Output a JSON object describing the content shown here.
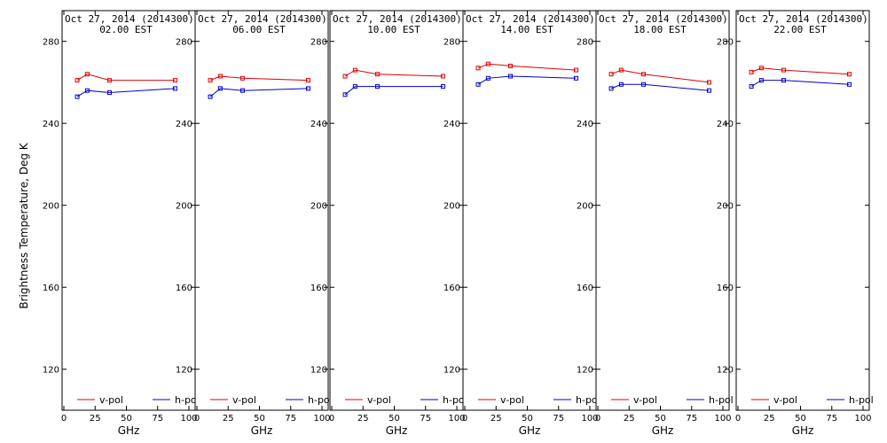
{
  "chart_data": {
    "type": "line",
    "xlabel": "GHz",
    "ylabel": "Brightness Temperature, Deg K",
    "xlim": [
      0,
      100
    ],
    "ylim": [
      100,
      295
    ],
    "x_ticks": [
      0,
      25,
      50,
      75,
      100
    ],
    "y_ticks": [
      120,
      160,
      200,
      240,
      280
    ],
    "grid": false,
    "legend_position": "bottom",
    "colors": {
      "v-pol": "#e00000",
      "h-pol": "#0000d0"
    },
    "panels": [
      {
        "date": "Oct 27, 2014 (2014300)",
        "time": "02.00 EST",
        "x": [
          10.7,
          18.7,
          36.5,
          89.0
        ],
        "series": [
          {
            "name": "v-pol",
            "values": [
              261,
              264,
              261,
              261
            ]
          },
          {
            "name": "h-pol",
            "values": [
              253,
              256,
              255,
              257
            ]
          }
        ]
      },
      {
        "date": "Oct 27, 2014 (2014300)",
        "time": "06.00 EST",
        "x": [
          10.7,
          18.7,
          36.5,
          89.0
        ],
        "series": [
          {
            "name": "v-pol",
            "values": [
              261,
              263,
              262,
              261
            ]
          },
          {
            "name": "h-pol",
            "values": [
              253,
              257,
              256,
              257
            ]
          }
        ]
      },
      {
        "date": "Oct 27, 2014 (2014300)",
        "time": "10.00 EST",
        "x": [
          10.7,
          18.7,
          36.5,
          89.0
        ],
        "series": [
          {
            "name": "v-pol",
            "values": [
              263,
              266,
              264,
              263
            ]
          },
          {
            "name": "h-pol",
            "values": [
              254,
              258,
              258,
              258
            ]
          }
        ]
      },
      {
        "date": "Oct 27, 2014 (2014300)",
        "time": "14.00 EST",
        "x": [
          10.7,
          18.7,
          36.5,
          89.0
        ],
        "series": [
          {
            "name": "v-pol",
            "values": [
              267,
              269,
              268,
              266
            ]
          },
          {
            "name": "h-pol",
            "values": [
              259,
              262,
              263,
              262
            ]
          }
        ]
      },
      {
        "date": "Oct 27, 2014 (2014300)",
        "time": "18.00 EST",
        "x": [
          10.7,
          18.7,
          36.5,
          89.0
        ],
        "series": [
          {
            "name": "v-pol",
            "values": [
              264,
              266,
              264,
              260
            ]
          },
          {
            "name": "h-pol",
            "values": [
              257,
              259,
              259,
              256
            ]
          }
        ]
      },
      {
        "date": "Oct 27, 2014 (2014300)",
        "time": "22.00 EST",
        "x": [
          10.7,
          18.7,
          36.5,
          89.0
        ],
        "series": [
          {
            "name": "v-pol",
            "values": [
              265,
              267,
              266,
              264
            ]
          },
          {
            "name": "h-pol",
            "values": [
              258,
              261,
              261,
              259
            ]
          }
        ]
      }
    ]
  }
}
